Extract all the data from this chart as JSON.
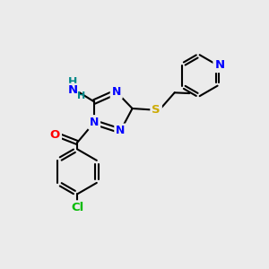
{
  "background_color": "#ebebeb",
  "bond_color": "#000000",
  "atom_colors": {
    "N": "#0000ff",
    "O": "#ff0000",
    "S": "#ccaa00",
    "Cl": "#00bb00",
    "NH_H": "#008888",
    "C": "#000000"
  },
  "lw": 1.5,
  "figsize": [
    3.0,
    3.0
  ],
  "dpi": 100
}
